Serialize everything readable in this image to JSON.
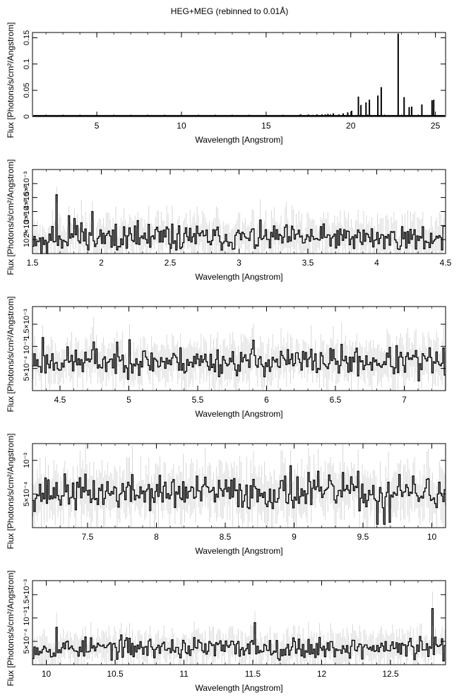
{
  "figure": {
    "title": "HEG+MEG (rebinned to 0.01Å)"
  },
  "chart_data": [
    {
      "type": "line",
      "xlabel": "Wavelength [Angstrom]",
      "ylabel": "Flux [Photons/s/cm²/Angstrom]",
      "xlim": [
        1.2,
        25.6
      ],
      "ylim": [
        0,
        0.16
      ],
      "xticks": [
        5,
        10,
        15,
        20,
        25
      ],
      "xtick_labels": [
        "5",
        "10",
        "15",
        "20",
        "25"
      ],
      "yticks": [
        0,
        0.05,
        0.1,
        0.15
      ],
      "ytick_labels": [
        "0",
        "0.05",
        "0.1",
        "0.15"
      ],
      "continuum_level": 0.0015,
      "lines": [
        {
          "x": 17.05,
          "y": 0.004
        },
        {
          "x": 17.5,
          "y": 0.004
        },
        {
          "x": 17.75,
          "y": 0.003
        },
        {
          "x": 18.0,
          "y": 0.004
        },
        {
          "x": 18.3,
          "y": 0.004
        },
        {
          "x": 18.5,
          "y": 0.004
        },
        {
          "x": 18.65,
          "y": 0.005
        },
        {
          "x": 18.8,
          "y": 0.004
        },
        {
          "x": 18.97,
          "y": 0.006
        },
        {
          "x": 19.3,
          "y": 0.004
        },
        {
          "x": 19.55,
          "y": 0.006
        },
        {
          "x": 19.82,
          "y": 0.008
        },
        {
          "x": 20.05,
          "y": 0.011
        },
        {
          "x": 20.45,
          "y": 0.038
        },
        {
          "x": 20.6,
          "y": 0.022
        },
        {
          "x": 20.9,
          "y": 0.027
        },
        {
          "x": 21.1,
          "y": 0.032
        },
        {
          "x": 21.6,
          "y": 0.04
        },
        {
          "x": 21.8,
          "y": 0.056
        },
        {
          "x": 22.8,
          "y": 0.158
        },
        {
          "x": 23.15,
          "y": 0.037
        },
        {
          "x": 23.45,
          "y": 0.018
        },
        {
          "x": 23.6,
          "y": 0.019
        },
        {
          "x": 24.2,
          "y": 0.023
        },
        {
          "x": 24.8,
          "y": 0.031
        },
        {
          "x": 24.9,
          "y": 0.032
        }
      ]
    },
    {
      "type": "line",
      "xlabel": "Wavelength [Angstrom]",
      "ylabel": "Flux [Photons/s/cm²/Angstrom]",
      "xlim": [
        1.5,
        4.5
      ],
      "ylim": [
        0,
        0.006
      ],
      "xticks": [
        1.5,
        2,
        2.5,
        3,
        3.5,
        4,
        4.5
      ],
      "xtick_labels": [
        "1.5",
        "2",
        "2.5",
        "3",
        "3.5",
        "4",
        "4.5"
      ],
      "yticks": [
        0.001,
        0.002,
        0.003,
        0.004,
        0.005
      ],
      "ytick_labels": [
        "10⁻³",
        "2×10⁻³",
        "3×10⁻³",
        "4×10⁻³",
        "5×10⁻³"
      ],
      "bin_width": 0.01,
      "level": 0.0011,
      "noise": 0.0007,
      "seed": 11,
      "spikes": [
        {
          "x": 1.56,
          "y": 0.0
        },
        {
          "x": 1.6,
          "y": 0.0
        },
        {
          "x": 1.63,
          "y": 0.0014
        },
        {
          "x": 1.68,
          "y": 0.0042
        },
        {
          "x": 1.76,
          "y": 0.0027
        },
        {
          "x": 1.8,
          "y": 0.0025
        },
        {
          "x": 1.85,
          "y": 0.0022
        },
        {
          "x": 1.94,
          "y": 0.003
        },
        {
          "x": 1.97,
          "y": 0.0007
        },
        {
          "x": 2.1,
          "y": 0.0021
        },
        {
          "x": 2.65,
          "y": 0.0018
        },
        {
          "x": 3.72,
          "y": 0.0006
        },
        {
          "x": 4.22,
          "y": 0.0004
        }
      ]
    },
    {
      "type": "line",
      "xlabel": "Wavelength [Angstrom]",
      "ylabel": "Flux [Photons/s/cm²/Angstrom]",
      "xlim": [
        4.3,
        7.3
      ],
      "ylim": [
        0,
        0.0019
      ],
      "xticks": [
        4.5,
        5,
        5.5,
        6,
        6.5,
        7
      ],
      "xtick_labels": [
        "4.5",
        "5",
        "5.5",
        "6",
        "6.5",
        "7"
      ],
      "yticks": [
        0.0005,
        0.001,
        0.0015
      ],
      "ytick_labels": [
        "5×10⁻⁴",
        "10⁻³",
        "1.5×10⁻³"
      ],
      "bin_width": 0.01,
      "level": 0.00066,
      "noise": 0.00024,
      "seed": 23,
      "spikes": [
        {
          "x": 4.37,
          "y": 0.0012
        },
        {
          "x": 4.74,
          "y": 0.0011
        },
        {
          "x": 5.0,
          "y": 0.00115
        },
        {
          "x": 5.9,
          "y": 0.00114
        },
        {
          "x": 7.1,
          "y": 0.00022
        }
      ]
    },
    {
      "type": "line",
      "xlabel": "Wavelength [Angstrom]",
      "ylabel": "Flux [Photons/s/cm²/Angstrom]",
      "xlim": [
        7.1,
        10.1
      ],
      "ylim": [
        0,
        0.00125
      ],
      "xticks": [
        7.5,
        8,
        8.5,
        9,
        9.5,
        10
      ],
      "xtick_labels": [
        "7.5",
        "8",
        "8.5",
        "9",
        "9.5",
        "10"
      ],
      "yticks": [
        0.0005,
        0.001
      ],
      "ytick_labels": [
        "5×10⁻⁴",
        "10⁻³"
      ],
      "bin_width": 0.01,
      "level": 0.00052,
      "noise": 0.00019,
      "seed": 37,
      "spikes": [
        {
          "x": 8.97,
          "y": 0.00092
        },
        {
          "x": 9.1,
          "y": 0.00082
        },
        {
          "x": 9.35,
          "y": 0.00082
        },
        {
          "x": 9.6,
          "y": 5e-05
        },
        {
          "x": 9.65,
          "y": 5e-05
        },
        {
          "x": 9.7,
          "y": 8e-05
        }
      ]
    },
    {
      "type": "line",
      "xlabel": "Wavelength [Angstrom]",
      "ylabel": "Flux [Photons/s/cm²/Angstrom]",
      "xlim": [
        9.9,
        12.9
      ],
      "ylim": [
        0,
        0.0018
      ],
      "xticks": [
        10,
        10.5,
        11,
        11.5,
        12,
        12.5
      ],
      "xtick_labels": [
        "10",
        "10.5",
        "11",
        "11.5",
        "12",
        "12.5"
      ],
      "yticks": [
        0.0005,
        0.001,
        0.0015
      ],
      "ytick_labels": [
        "5×10⁻⁴",
        "10⁻³",
        "1.5×10⁻³"
      ],
      "bin_width": 0.01,
      "level": 0.00036,
      "noise": 0.00017,
      "seed": 53,
      "spikes": [
        {
          "x": 10.08,
          "y": 0.0008
        },
        {
          "x": 11.52,
          "y": 0.0009
        },
        {
          "x": 12.8,
          "y": 0.0012
        },
        {
          "x": 12.88,
          "y": 8e-05
        }
      ]
    }
  ]
}
